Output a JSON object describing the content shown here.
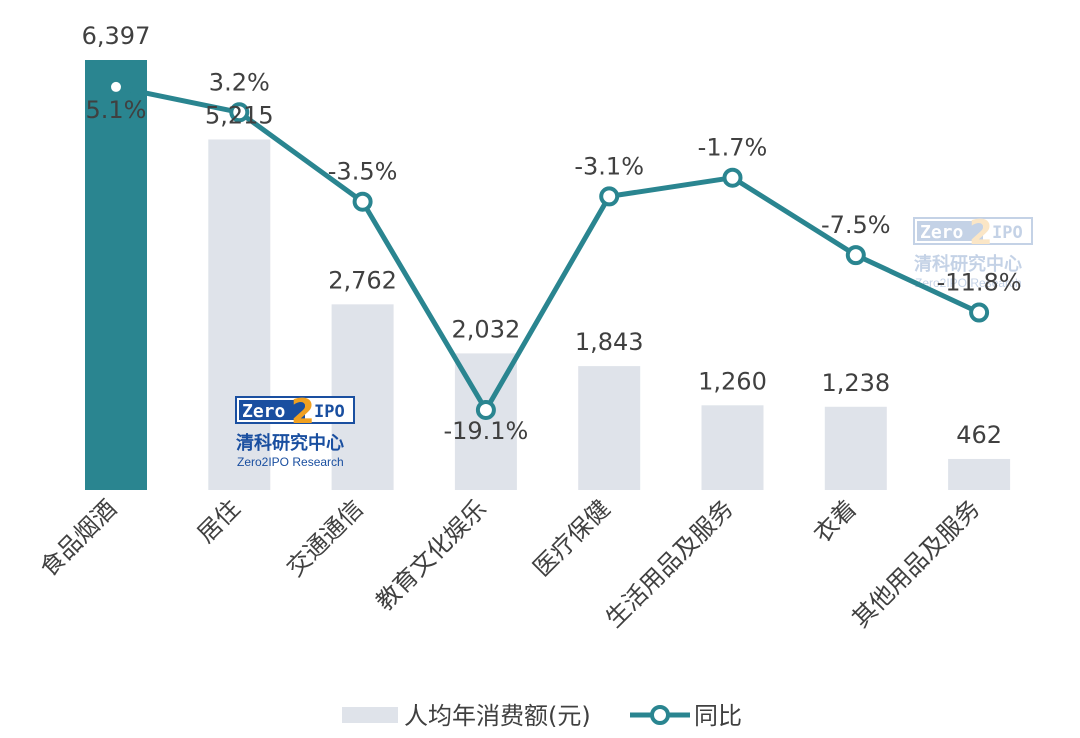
{
  "chart_data": {
    "type": "bar+line",
    "categories": [
      "食品烟酒",
      "居住",
      "交通通信",
      "教育文化娱乐",
      "医疗保健",
      "生活用品及服务",
      "衣着",
      "其他用品及服务"
    ],
    "series": [
      {
        "name": "人均年消费额(元)",
        "type": "bar",
        "values": [
          6397,
          5215,
          2762,
          2032,
          1843,
          1260,
          1238,
          462
        ],
        "labels": [
          "6,397",
          "5,215",
          "2,762",
          "2,032",
          "1,843",
          "1,260",
          "1,238",
          "462"
        ]
      },
      {
        "name": "同比",
        "type": "line",
        "values": [
          5.1,
          3.2,
          -3.5,
          -19.1,
          -3.1,
          -1.7,
          -7.5,
          -11.8
        ],
        "labels": [
          "5.1%",
          "3.2%",
          "-3.5%",
          "-19.1%",
          "-3.1%",
          "-1.7%",
          "-7.5%",
          "-11.8%"
        ]
      }
    ],
    "legend_position": "bottom",
    "grid": false,
    "colors": {
      "bar": "#dfe3ea",
      "bar_highlight": "#2a8590",
      "line": "#2a8590",
      "text": "#404040"
    }
  },
  "watermark": {
    "logo_left": "Zero",
    "logo_digit": "2",
    "logo_right": "IPO",
    "cn": "清科研究中心",
    "en": "Zero2IPO Research"
  }
}
